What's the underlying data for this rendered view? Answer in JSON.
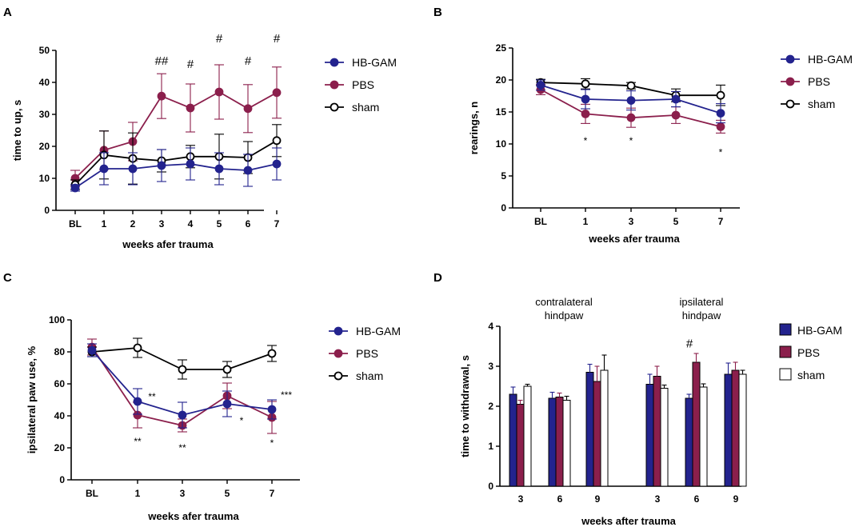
{
  "colors": {
    "HB-GAM": "#23238e",
    "PBS": "#8b1f4c",
    "sham": "#000000"
  },
  "chart_data": [
    {
      "panel": "A",
      "type": "line",
      "categories": [
        "BL",
        "1",
        "2",
        "3",
        "4",
        "5",
        "6",
        "7"
      ],
      "xlabel": "weeks afer trauma",
      "ylabel": "time to up, s",
      "ylim": [
        0,
        50
      ],
      "yticks": [
        "0",
        "10",
        "20",
        "30",
        "40",
        "50"
      ],
      "legend": [
        "HB-GAM",
        "PBS",
        "sham"
      ],
      "series": [
        {
          "name": "HB-GAM",
          "marker": "filled",
          "values": [
            7,
            13,
            13,
            14,
            14.5,
            13,
            12.5,
            14.5
          ],
          "err": [
            1,
            5,
            5,
            5,
            5,
            5,
            5,
            5
          ]
        },
        {
          "name": "PBS",
          "marker": "filled",
          "values": [
            10,
            18.8,
            21.5,
            35.7,
            32,
            37,
            31.8,
            36.8
          ],
          "err": [
            2.5,
            6,
            6,
            7,
            7.5,
            8.5,
            7.5,
            8
          ]
        },
        {
          "name": "sham",
          "marker": "open",
          "values": [
            8,
            17.3,
            16.2,
            15.5,
            16.8,
            16.8,
            16.5,
            21.8
          ],
          "err": [
            1.5,
            7.5,
            8,
            3.5,
            3.5,
            7,
            5,
            5
          ]
        }
      ],
      "annotations": [
        {
          "text": "##",
          "category": "3",
          "y": 46.5
        },
        {
          "text": "#",
          "category": "4",
          "y": 45.5
        },
        {
          "text": "#",
          "category": "5",
          "y": 53.5
        },
        {
          "text": "#",
          "category": "6",
          "y": 46.5
        },
        {
          "text": "#",
          "category": "7",
          "y": 53.5
        }
      ]
    },
    {
      "panel": "B",
      "type": "line",
      "categories": [
        "BL",
        "1",
        "3",
        "5",
        "7"
      ],
      "xlabel": "weeks afer trauma",
      "ylabel": "rearings, n",
      "ylim": [
        0,
        25
      ],
      "yticks": [
        "0",
        "5",
        "10",
        "15",
        "20",
        "25"
      ],
      "legend": [
        "HB-GAM",
        "PBS",
        "sham"
      ],
      "series": [
        {
          "name": "HB-GAM",
          "marker": "filled",
          "values": [
            19.2,
            17,
            16.8,
            17,
            14.8
          ],
          "err": [
            0.8,
            1.5,
            1.5,
            1.2,
            1.5
          ]
        },
        {
          "name": "PBS",
          "marker": "filled",
          "values": [
            18.5,
            14.7,
            14.1,
            14.5,
            12.7
          ],
          "err": [
            0.8,
            1.5,
            1.5,
            1.3,
            1.0
          ]
        },
        {
          "name": "sham",
          "marker": "open",
          "values": [
            19.6,
            19.4,
            19.1,
            17.6,
            17.6
          ],
          "err": [
            0.5,
            0.8,
            0.5,
            1.0,
            1.6
          ]
        }
      ],
      "annotations": [
        {
          "text": "*",
          "category": "1",
          "y": 10.5
        },
        {
          "text": "*",
          "category": "3",
          "y": 10.5
        },
        {
          "text": "*",
          "category": "7",
          "y": 8.7
        }
      ]
    },
    {
      "panel": "C",
      "type": "line",
      "categories": [
        "BL",
        "1",
        "3",
        "5",
        "7"
      ],
      "xlabel": "weeks afer trauma",
      "ylabel": "ipsilateral paw use, %",
      "ylim": [
        0,
        100
      ],
      "yticks": [
        "0",
        "20",
        "40",
        "60",
        "80",
        "100"
      ],
      "legend": [
        "HB-GAM",
        "PBS",
        "sham"
      ],
      "series": [
        {
          "name": "HB-GAM",
          "marker": "filled",
          "values": [
            81,
            49,
            40.5,
            47.5,
            44
          ],
          "err": [
            4,
            8,
            8,
            8,
            6
          ]
        },
        {
          "name": "PBS",
          "marker": "filled",
          "values": [
            83,
            40.5,
            34,
            52.5,
            39
          ],
          "err": [
            5,
            8,
            4,
            8,
            10
          ]
        },
        {
          "name": "sham",
          "marker": "open",
          "values": [
            80,
            82.5,
            69,
            69,
            79
          ],
          "err": [
            3,
            6,
            6,
            5,
            5
          ]
        }
      ],
      "annotations": [
        {
          "text": "**",
          "category": "1",
          "y": 52,
          "offset": "right"
        },
        {
          "text": "**",
          "category": "1",
          "y": 24
        },
        {
          "text": "**",
          "category": "3",
          "y": 20
        },
        {
          "text": "*",
          "category": "5",
          "y": 37,
          "offset": "right"
        },
        {
          "text": "***",
          "category": "7",
          "y": 53,
          "offset": "right"
        },
        {
          "text": "*",
          "category": "7",
          "y": 23
        }
      ]
    },
    {
      "panel": "D",
      "type": "bar",
      "groups": [
        "contralateral\nhindpaw",
        "ipsilateral\nhindpaw"
      ],
      "categories": [
        "3",
        "6",
        "9",
        "3",
        "6",
        "9"
      ],
      "xlabel": "weeks after trauma",
      "ylabel": "time to withdrawal, s",
      "ylim": [
        0,
        4
      ],
      "yticks": [
        "0",
        "1",
        "2",
        "3",
        "4"
      ],
      "legend": [
        "HB-GAM",
        "PBS",
        "sham"
      ],
      "series": [
        {
          "name": "HB-GAM",
          "values": [
            2.3,
            2.2,
            2.85,
            2.55,
            2.2,
            2.8
          ],
          "err": [
            0.18,
            0.15,
            0.2,
            0.25,
            0.1,
            0.28
          ]
        },
        {
          "name": "PBS",
          "values": [
            2.05,
            2.23,
            2.62,
            2.75,
            3.1,
            2.9
          ],
          "err": [
            0.1,
            0.1,
            0.38,
            0.25,
            0.22,
            0.2
          ]
        },
        {
          "name": "sham",
          "values": [
            2.5,
            2.15,
            2.9,
            2.45,
            2.48,
            2.8
          ],
          "err": [
            0.05,
            0.1,
            0.38,
            0.08,
            0.08,
            0.1
          ]
        }
      ],
      "annotations": [
        {
          "text": "#",
          "category_index": 4,
          "y": 3.55
        }
      ]
    }
  ]
}
